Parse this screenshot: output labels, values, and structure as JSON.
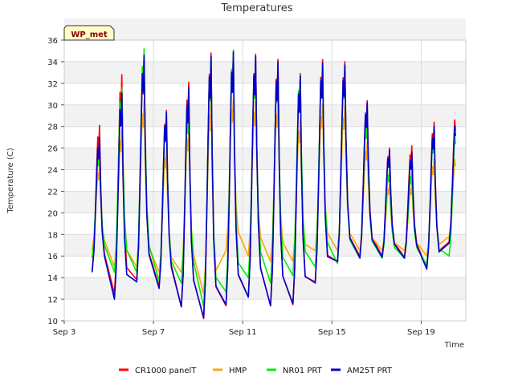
{
  "chart_data": {
    "type": "line",
    "title": "Temperatures",
    "xlabel": "Time",
    "ylabel": "Temperature (C)",
    "station_tag": "WP_met",
    "ylim": [
      10,
      36
    ],
    "y_ticks": [
      10,
      12,
      14,
      16,
      18,
      20,
      22,
      24,
      26,
      28,
      30,
      32,
      34,
      36
    ],
    "xlim": [
      "Sep 3 00:00",
      "Sep 21 00:00"
    ],
    "x_ticks": [
      "Sep 3",
      "Sep 7",
      "Sep 11",
      "Sep 15",
      "Sep 19"
    ],
    "grid": true,
    "legend_position": "bottom",
    "days": [
      "Sep 3",
      "Sep 4",
      "Sep 5",
      "Sep 6",
      "Sep 7",
      "Sep 8",
      "Sep 9",
      "Sep 10",
      "Sep 11",
      "Sep 12",
      "Sep 13",
      "Sep 14",
      "Sep 15",
      "Sep 16",
      "Sep 17",
      "Sep 18",
      "Sep 19",
      "Sep 20"
    ],
    "series": [
      {
        "name": "CR1000 panelT",
        "color": "#ff0000",
        "daily_max": [
          null,
          28.1,
          32.8,
          34.3,
          29.5,
          32.1,
          34.8,
          35.0,
          34.7,
          34.2,
          32.9,
          34.2,
          34.0,
          30.4,
          26.0,
          26.2,
          28.4,
          29.6
        ],
        "daily_min": [
          15.8,
          14.6,
          12.5,
          13.8,
          13.2,
          11.3,
          10.2,
          11.4,
          12.2,
          11.4,
          11.5,
          13.6,
          15.5,
          16.0,
          16.0,
          15.9,
          14.9,
          17.3
        ]
      },
      {
        "name": "HMP",
        "color": "#ffa500",
        "daily_max": [
          null,
          24.3,
          27.7,
          30.4,
          26.0,
          27.9,
          30.5,
          30.7,
          30.4,
          30.3,
          28.6,
          30.0,
          29.9,
          26.5,
          22.7,
          22.7,
          25.0,
          25.6
        ],
        "daily_min": [
          16.5,
          16.5,
          15.0,
          15.0,
          14.5,
          14.5,
          12.5,
          16.5,
          16.0,
          15.5,
          15.5,
          16.5,
          16.5,
          16.5,
          16.5,
          16.5,
          16.0,
          17.8
        ]
      },
      {
        "name": "NR01 PRT",
        "color": "#00ee00",
        "daily_max": [
          null,
          26.0,
          31.6,
          35.2,
          29.0,
          30.0,
          34.0,
          35.1,
          33.8,
          33.4,
          32.8,
          33.8,
          33.5,
          29.0,
          24.2,
          24.0,
          27.5,
          28.3
        ],
        "daily_min": [
          16.5,
          15.8,
          14.5,
          14.5,
          13.7,
          13.5,
          11.3,
          12.7,
          14.0,
          13.5,
          14.2,
          15.0,
          15.3,
          15.8,
          15.8,
          15.8,
          15.2,
          16.0
        ]
      },
      {
        "name": "AM25T PRT",
        "color": "#0000cd",
        "daily_max": [
          null,
          27.0,
          31.1,
          34.6,
          29.3,
          31.6,
          34.5,
          34.9,
          34.5,
          34.0,
          32.7,
          33.9,
          33.7,
          30.2,
          25.8,
          25.6,
          28.0,
          29.0
        ],
        "daily_min": [
          15.7,
          14.5,
          12.0,
          13.6,
          13.0,
          11.3,
          10.3,
          11.5,
          12.2,
          11.4,
          11.6,
          13.5,
          15.5,
          15.8,
          15.9,
          15.8,
          14.8,
          17.2
        ]
      }
    ]
  }
}
